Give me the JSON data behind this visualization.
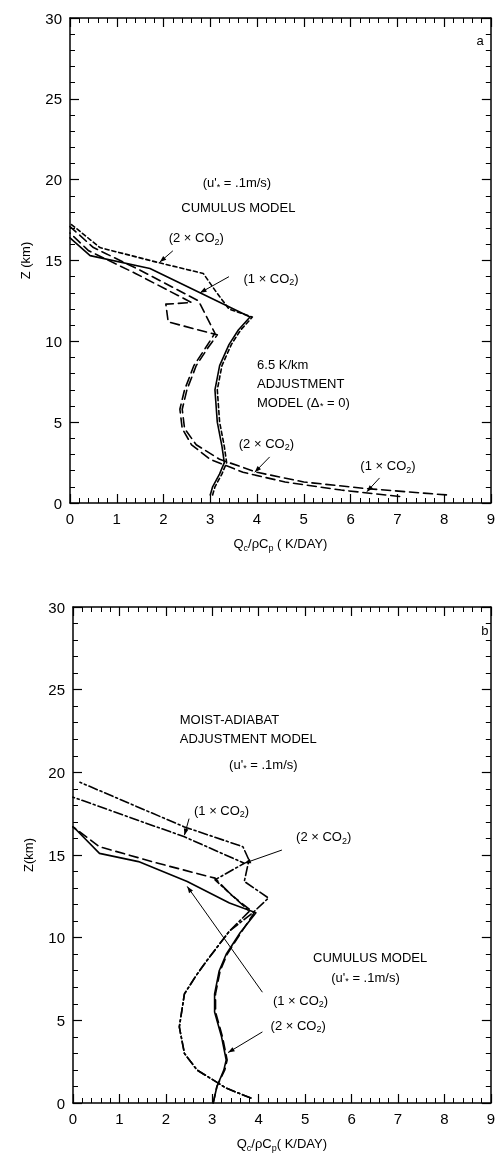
{
  "chart_data": [
    {
      "type": "line",
      "xlabel": "Q$_{c}$/ρC$_{p}$ ( K/DAY)",
      "ylabel": "Z (km)",
      "xlim": [
        0,
        9
      ],
      "xticks": [
        0,
        1,
        2,
        3,
        4,
        5,
        6,
        7,
        8,
        9
      ],
      "ylim": [
        0,
        30
      ],
      "yticks": [
        0,
        5,
        10,
        15,
        20,
        25,
        30
      ],
      "marker": "none",
      "series": [
        {
          "color": "#000000",
          "line_style": "solid",
          "x": [
            3.0,
            3.05,
            3.2,
            3.3,
            3.25,
            3.15,
            3.1,
            3.2,
            3.4,
            3.6,
            3.85,
            2.78,
            1.71,
            0.43,
            0
          ],
          "values": [
            0.5,
            1,
            1.8,
            2.5,
            3.5,
            5,
            7,
            8.5,
            9.8,
            10.7,
            11.5,
            13.0,
            14.5,
            15.3,
            16.4
          ]
        },
        {
          "color": "#000000",
          "line_style": "dotted",
          "x": [
            3.05,
            3.1,
            3.25,
            3.35,
            3.3,
            3.2,
            3.15,
            3.25,
            3.45,
            3.65,
            3.9,
            3.4,
            3.14,
            2.85,
            1.85,
            0.64,
            0
          ],
          "values": [
            0.5,
            1,
            1.8,
            2.5,
            3.5,
            5,
            7,
            8.5,
            9.8,
            10.7,
            11.5,
            12.0,
            13.0,
            14.2,
            14.9,
            15.8,
            17.3
          ]
        },
        {
          "color": "#000000",
          "line_style": "dashed",
          "x": [
            8.05,
            6.3,
            5.0,
            4.0,
            3.2,
            2.7,
            2.45,
            2.4,
            2.5,
            2.7,
            2.95,
            3.15,
            2.1,
            2.05,
            2.6,
            1.4,
            0.4,
            0
          ],
          "values": [
            0.5,
            0.9,
            1.3,
            1.9,
            2.7,
            3.6,
            4.6,
            5.8,
            7,
            8.5,
            9.6,
            10.4,
            11.2,
            12.3,
            12.4,
            14.2,
            15.6,
            16.7
          ]
        },
        {
          "color": "#000000",
          "line_style": "dashed",
          "x": [
            7.05,
            5.8,
            4.6,
            3.7,
            3.0,
            2.6,
            2.4,
            2.35,
            2.45,
            2.65,
            2.9,
            3.1,
            2.75,
            1.5,
            0.5,
            0
          ],
          "values": [
            0.4,
            0.8,
            1.3,
            1.9,
            2.7,
            3.6,
            4.6,
            5.8,
            7,
            8.5,
            9.6,
            10.5,
            12.5,
            14.4,
            15.8,
            17.1
          ]
        }
      ],
      "annotations": [
        "a",
        "(u'$_{*}$ = .1m/s)",
        "CUMULUS MODEL",
        {
          "text": "(2 × CO$_{2}$)",
          "x": 1.92,
          "y": 14.9
        },
        {
          "text": "(1 × CO$_{2}$)",
          "x": 2.78,
          "y": 13.0
        },
        "6.5 K/km\nADJUSTMENT\nMODEL (Δ$_{*}$ = 0)",
        {
          "text": "(2 × CO$_{2}$)",
          "x": 3.95,
          "y": 1.9
        },
        {
          "text": "(1 × CO$_{2}$)",
          "x": 6.35,
          "y": 0.7
        }
      ]
    },
    {
      "type": "line",
      "xlabel": "Q$_{c}$/ρC$_{p}$( K/DAY)",
      "ylabel": "Z(km)",
      "xlim": [
        0,
        9
      ],
      "xticks": [
        0,
        1,
        2,
        3,
        4,
        5,
        6,
        7,
        8,
        9
      ],
      "ylim": [
        0,
        30
      ],
      "yticks": [
        0,
        5,
        10,
        15,
        20,
        25,
        30
      ],
      "marker": "none",
      "series": [
        {
          "color": "#000000",
          "line_style": "solid",
          "x": [
            3.02,
            3.1,
            3.25,
            3.3,
            3.2,
            3.05,
            3.05,
            3.15,
            3.3,
            3.6,
            3.94,
            3.37,
            2.46,
            1.41,
            0.57,
            0.08,
            0
          ],
          "values": [
            0,
            1,
            2,
            2.6,
            4,
            5.5,
            6.6,
            8,
            9,
            10.3,
            11.5,
            12.1,
            13.4,
            14.6,
            15.1,
            16.5,
            16.7
          ]
        },
        {
          "color": "#000000",
          "line_style": "dashed",
          "x": [
            3.02,
            3.1,
            3.27,
            3.32,
            3.22,
            3.07,
            3.07,
            3.17,
            3.32,
            3.62,
            3.9,
            3.4,
            3.06,
            1.83,
            0.57,
            0
          ],
          "values": [
            0,
            1,
            2,
            2.6,
            4,
            5.5,
            6.6,
            8,
            9,
            10.3,
            11.5,
            12.6,
            13.6,
            14.5,
            15.5,
            16.7
          ]
        },
        {
          "color": "#000000",
          "line_style": "dashdot",
          "x": [
            3.83,
            3.3,
            2.67,
            2.4,
            2.29,
            2.4,
            2.65,
            2.88,
            3.37,
            3.87,
            4.21,
            3.69,
            3.79,
            3.66,
            2.4,
            0.15
          ],
          "values": [
            0.3,
            0.9,
            2.0,
            3.0,
            4.6,
            6.6,
            7.7,
            8.6,
            10.4,
            11.5,
            12.4,
            13.4,
            14.7,
            15.5,
            16.7,
            19.4
          ]
        },
        {
          "color": "#000000",
          "line_style": "dashdot",
          "x": [
            3.83,
            3.3,
            2.67,
            2.4,
            2.29,
            2.4,
            2.65,
            2.88,
            3.37,
            3.8,
            3.06,
            3.69,
            2.4,
            0
          ],
          "values": [
            0.3,
            0.9,
            2.0,
            3.0,
            4.6,
            6.6,
            7.7,
            8.6,
            10.4,
            11.6,
            13.5,
            14.5,
            16.1,
            18.5
          ]
        }
      ],
      "annotations": [
        "b",
        "MOIST-ADIABAT\nADJUSTMENT MODEL",
        "(u'$_{*}$ = .1m/s)",
        {
          "text": "(1 × CO$_{2}$)",
          "x": 2.4,
          "y": 16.2
        },
        {
          "text": "(2 × CO$_{2}$)",
          "x": 3.69,
          "y": 14.5
        },
        "CUMULUS MODEL",
        "(u'$_{*}$ = .1m/s)",
        {
          "text": "(1 × CO$_{2}$)",
          "x": 2.46,
          "y": 13.1
        },
        {
          "text": "(2 × CO$_{2}$)",
          "x": 3.34,
          "y": 3.05
        }
      ]
    }
  ]
}
